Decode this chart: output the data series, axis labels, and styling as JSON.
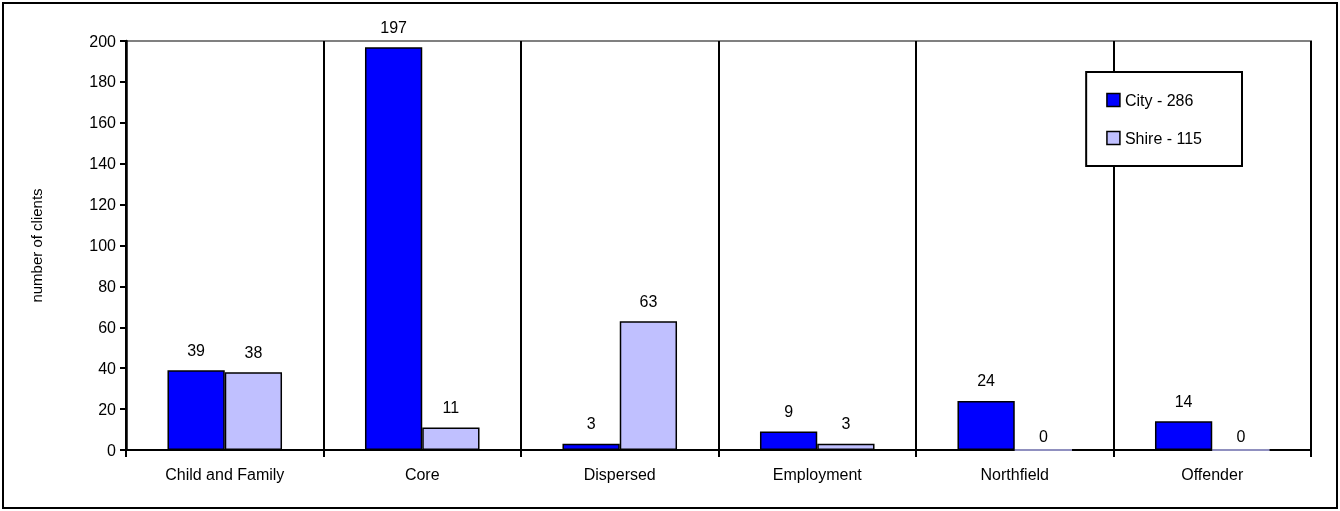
{
  "chart_data": {
    "type": "bar",
    "ylabel": "number of clients",
    "categories": [
      "Child and Family",
      "Core",
      "Dispersed",
      "Employment",
      "Northfield",
      "Offender"
    ],
    "series": [
      {
        "name": "City - 286",
        "color": "#0000ff",
        "values": [
          39,
          197,
          3,
          9,
          24,
          14
        ]
      },
      {
        "name": "Shire - 115",
        "color": "#c0c0ff",
        "values": [
          38,
          11,
          63,
          3,
          0,
          0
        ]
      }
    ],
    "ylim": [
      0,
      200
    ],
    "yticks": [
      0,
      20,
      40,
      60,
      80,
      100,
      120,
      140,
      160,
      180,
      200
    ],
    "grid": "x",
    "legend": "top right",
    "data_labels": true
  }
}
